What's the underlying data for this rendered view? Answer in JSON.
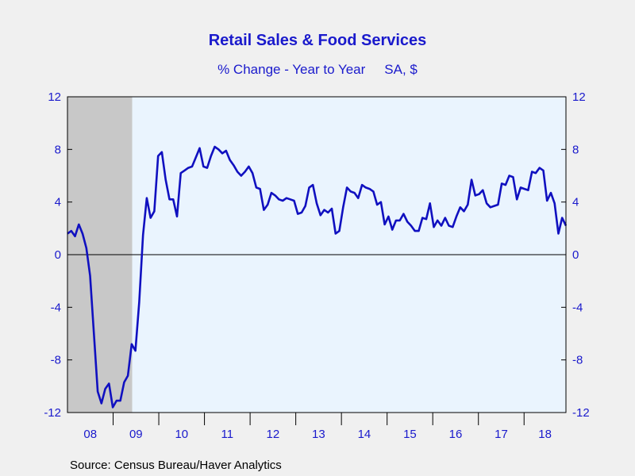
{
  "chart_data": {
    "type": "line",
    "title": "Retail Sales & Food Services",
    "subtitle_left": "% Change - Year to Year",
    "subtitle_right": "SA, $",
    "source": "Source:  Census Bureau/Haver Analytics",
    "ylim": [
      -12,
      12
    ],
    "y_ticks": [
      "12",
      "8",
      "4",
      "0",
      "-4",
      "-8",
      "-12"
    ],
    "y_tick_values": [
      12,
      8,
      4,
      0,
      -4,
      -8,
      -12
    ],
    "x_tick_labels": [
      "08",
      "09",
      "10",
      "11",
      "12",
      "13",
      "14",
      "15",
      "16",
      "17",
      "18"
    ],
    "x_start": 2008.0,
    "x_end": 2018.917,
    "recession_shading": {
      "from": 2008.0,
      "to": 2009.417,
      "color": "#c8c8c8"
    },
    "plot_background": "#eaf4fe",
    "line_color": "#1010c0",
    "grid": false,
    "series": [
      {
        "values": [
          1.6,
          1.8,
          1.4,
          2.3,
          1.6,
          0.5,
          -1.6,
          -6.0,
          -10.4,
          -11.3,
          -10.2,
          -9.8,
          -11.6,
          -11.1,
          -11.1,
          -9.7,
          -9.2,
          -6.8,
          -7.3,
          -3.6,
          1.5,
          4.3,
          2.8,
          3.3,
          7.5,
          7.8,
          5.7,
          4.2,
          4.2,
          2.9,
          6.2,
          6.4,
          6.6,
          6.7,
          7.4,
          8.1,
          6.7,
          6.6,
          7.5,
          8.2,
          8.0,
          7.7,
          7.9,
          7.2,
          6.8,
          6.3,
          6.0,
          6.3,
          6.7,
          6.2,
          5.1,
          5.0,
          3.4,
          3.8,
          4.7,
          4.5,
          4.2,
          4.1,
          4.3,
          4.2,
          4.1,
          3.1,
          3.2,
          3.7,
          5.1,
          5.3,
          3.9,
          3.0,
          3.4,
          3.2,
          3.5,
          1.6,
          1.8,
          3.6,
          5.1,
          4.8,
          4.7,
          4.3,
          5.3,
          5.1,
          5.0,
          4.8,
          3.8,
          4.0,
          2.3,
          2.9,
          1.9,
          2.6,
          2.6,
          3.1,
          2.5,
          2.2,
          1.8,
          1.8,
          2.8,
          2.7,
          3.9,
          2.1,
          2.6,
          2.2,
          2.8,
          2.2,
          2.1,
          2.9,
          3.6,
          3.3,
          3.8,
          5.7,
          4.5,
          4.6,
          4.9,
          3.9,
          3.6,
          3.7,
          3.8,
          5.4,
          5.3,
          6.0,
          5.9,
          4.2,
          5.1,
          5.0,
          4.9,
          6.3,
          6.2,
          6.6,
          6.4,
          4.1,
          4.7,
          3.9,
          1.6,
          2.8,
          2.2
        ]
      }
    ]
  }
}
